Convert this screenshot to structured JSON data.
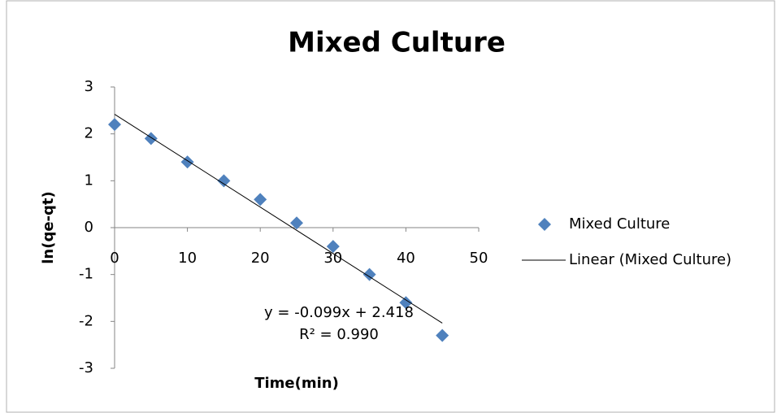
{
  "chart_data": {
    "type": "scatter",
    "title": "Mixed Culture",
    "x_label": "Time(min)",
    "y_label": "ln(qe-qt)",
    "x": [
      0,
      5,
      10,
      15,
      20,
      25,
      30,
      35,
      40,
      45
    ],
    "series": [
      {
        "name": "Mixed Culture",
        "color": "#4f81bd",
        "values": [
          2.2,
          1.9,
          1.4,
          1.0,
          0.6,
          0.1,
          -0.4,
          -1.0,
          -1.6,
          -2.3
        ]
      }
    ],
    "trendline": {
      "name": "Linear (Mixed Culture)",
      "slope": -0.099,
      "intercept": 2.418,
      "equation": "y = -0.099x + 2.418",
      "r_squared_label": "R² = 0.990",
      "color": "#000000"
    },
    "xlim": [
      0,
      50
    ],
    "xticks": [
      0,
      10,
      20,
      30,
      40,
      50
    ],
    "ylim": [
      -3,
      3
    ],
    "yticks": [
      -3,
      -2,
      -1,
      0,
      1,
      2,
      3
    ],
    "grid": false,
    "legend": "right"
  }
}
